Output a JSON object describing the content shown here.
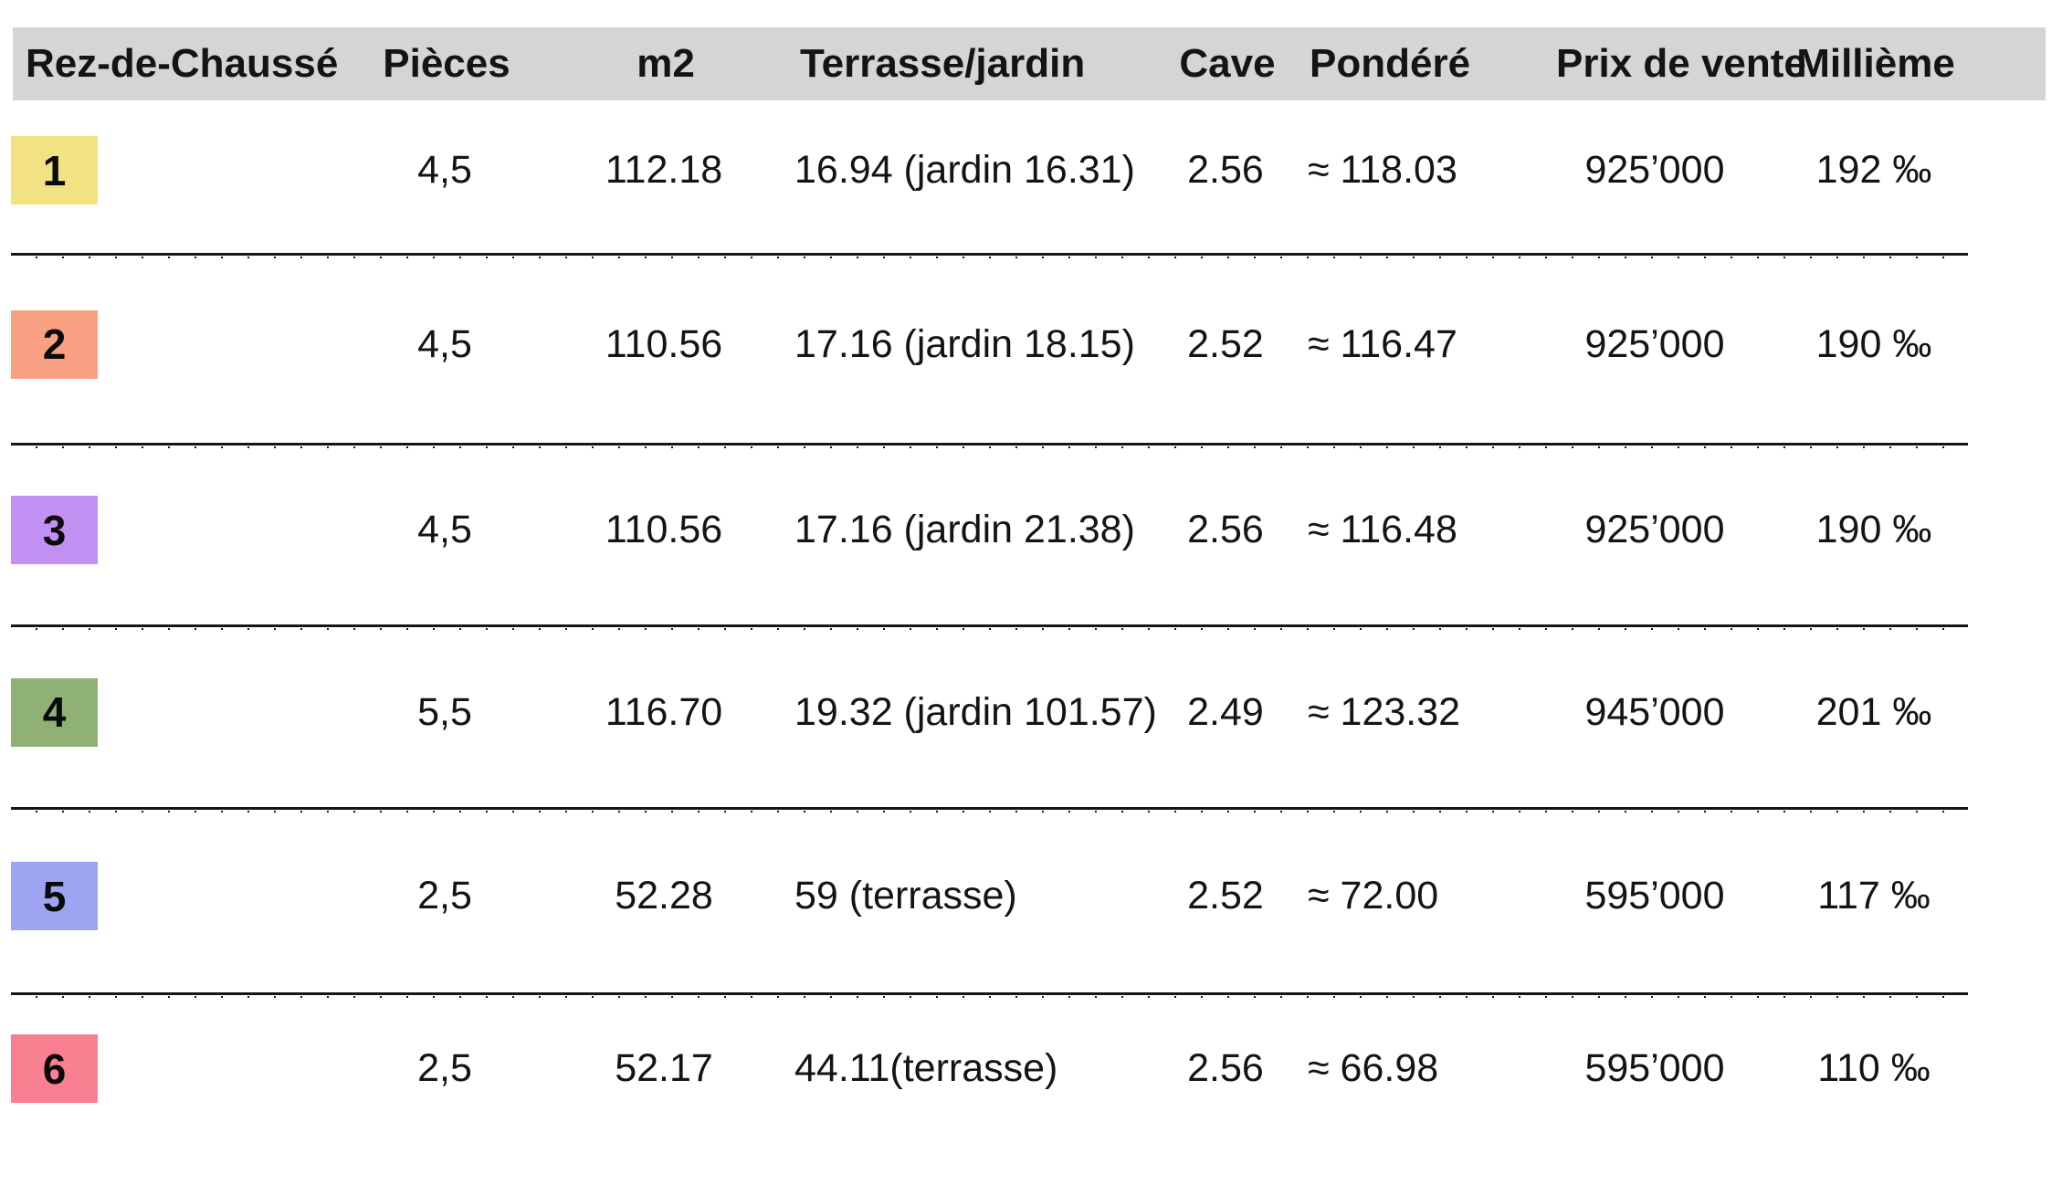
{
  "header": {
    "columns": {
      "label": "Rez-de-Chaussé",
      "pieces": "Pièces",
      "m2": "m2",
      "terrasse": "Terrasse/jardin",
      "cave": "Cave",
      "pondere": "Pondéré",
      "prix": "Prix de vente",
      "millieme": "Millième"
    }
  },
  "colors": {
    "header_bg": "#d5d5d5",
    "separator": "#161616"
  },
  "rows": [
    {
      "num": "1",
      "badge_color": "#f1e383",
      "pieces": "4,5",
      "m2": "112.18",
      "terrasse": "16.94 (jardin 16.31)",
      "cave": "2.56",
      "pondere": "≈ 118.03",
      "prix": "925’000",
      "millieme": "192 ‰"
    },
    {
      "num": "2",
      "badge_color": "#f9a083",
      "pieces": "4,5",
      "m2": "110.56",
      "terrasse": "17.16 (jardin 18.15)",
      "cave": "2.52",
      "pondere": "≈ 116.47",
      "prix": "925’000",
      "millieme": "190 ‰"
    },
    {
      "num": "3",
      "badge_color": "#c28ff2",
      "pieces": "4,5",
      "m2": "110.56",
      "terrasse": "17.16 (jardin 21.38)",
      "cave": "2.56",
      "pondere": "≈ 116.48",
      "prix": "925’000",
      "millieme": "190 ‰"
    },
    {
      "num": "4",
      "badge_color": "#8fb175",
      "pieces": "5,5",
      "m2": "116.70",
      "terrasse": "19.32 (jardin 101.57)",
      "cave": "2.49",
      "pondere": "≈ 123.32",
      "prix": "945’000",
      "millieme": "201 ‰"
    },
    {
      "num": "5",
      "badge_color": "#9da5f2",
      "pieces": "2,5",
      "m2": "52.28",
      "terrasse": "59 (terrasse)",
      "cave": "2.52",
      "pondere": "≈ 72.00",
      "prix": "595’000",
      "millieme": "117 ‰"
    },
    {
      "num": "6",
      "badge_color": "#f98090",
      "pieces": "2,5",
      "m2": "52.17",
      "terrasse": "44.11(terrasse)",
      "cave": "2.56",
      "pondere": "≈ 66.98",
      "prix": "595’000",
      "millieme": "110 ‰"
    }
  ]
}
